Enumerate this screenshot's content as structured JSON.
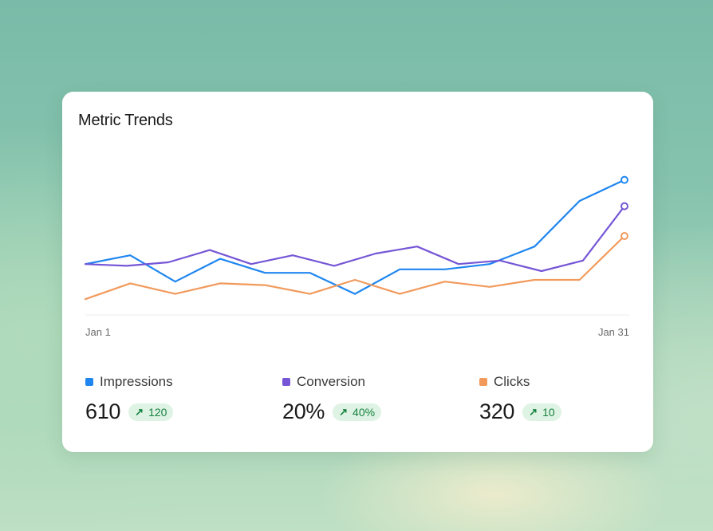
{
  "card": {
    "title": "Metric Trends"
  },
  "chart_data": {
    "type": "line",
    "x_labels": [
      "Jan 1",
      "Jan 31"
    ],
    "ylim": [
      0,
      100
    ],
    "grid": false,
    "series": [
      {
        "name": "Impressions",
        "color": "#1f86f0",
        "values": [
          29,
          34,
          19,
          32,
          24,
          24,
          12,
          26,
          26,
          29,
          39,
          65,
          77
        ]
      },
      {
        "name": "Conversion",
        "color": "#7556d6",
        "values": [
          29,
          28,
          30,
          37,
          29,
          34,
          28,
          35,
          39,
          29,
          31,
          25,
          31,
          62
        ]
      },
      {
        "name": "Clicks",
        "color": "#f19a5c",
        "values": [
          9,
          18,
          12,
          18,
          17,
          12,
          20,
          12,
          19,
          16,
          20,
          20,
          45
        ]
      }
    ]
  },
  "stats": [
    {
      "label": "Impressions",
      "value": "610",
      "change": "120",
      "color": "#1f86f0"
    },
    {
      "label": "Conversion",
      "value": "20%",
      "change": "40%",
      "color": "#7556d6"
    },
    {
      "label": "Clicks",
      "value": "320",
      "change": "10",
      "color": "#f19a5c"
    }
  ]
}
